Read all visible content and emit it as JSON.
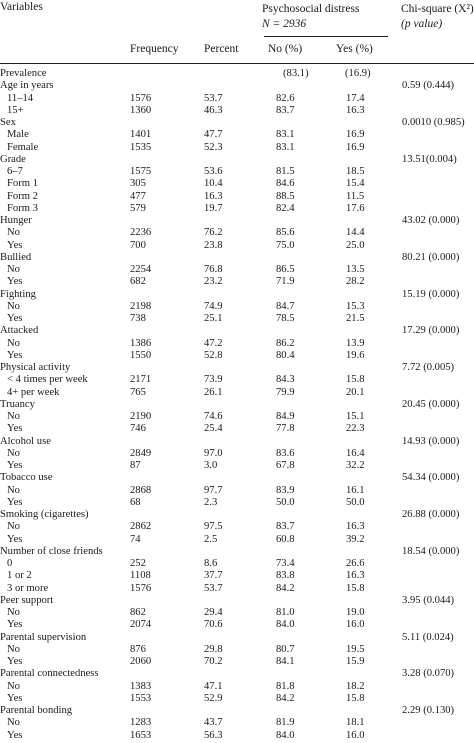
{
  "header": {
    "variables": "Variables",
    "psych_title": "Psychosocial distress",
    "psych_n": "N = 2936",
    "chi_line1": "Chi-square (X²)",
    "chi_line2": "(p value)",
    "frequency": "Frequency",
    "percent": "Percent",
    "no_pct": "No (%)",
    "yes_pct": "Yes (%)"
  },
  "rows": [
    {
      "label": "Prevalence",
      "no": "(83.1)",
      "yes": "(16.9)",
      "prev": true
    },
    {
      "label": "Age in years",
      "chi": "0.59 (0.444)"
    },
    {
      "label": "11–14",
      "freq": "1576",
      "pct": "53.7",
      "no": "82.6",
      "yes": "17.4",
      "ind": true
    },
    {
      "label": "15+",
      "freq": "1360",
      "pct": "46.3",
      "no": "83.7",
      "yes": "16.3",
      "ind": true
    },
    {
      "label": "Sex",
      "chi": "0.0010 (0.985)"
    },
    {
      "label": "Male",
      "freq": "1401",
      "pct": "47.7",
      "no": "83.1",
      "yes": "16.9",
      "ind": true
    },
    {
      "label": "Female",
      "freq": "1535",
      "pct": "52.3",
      "no": "83.1",
      "yes": "16.9",
      "ind": true
    },
    {
      "label": "Grade",
      "chi": "13.51(0.004)"
    },
    {
      "label": "6–7",
      "freq": "1575",
      "pct": "53.6",
      "no": "81.5",
      "yes": "18.5",
      "ind": true
    },
    {
      "label": "Form 1",
      "freq": "305",
      "pct": "10.4",
      "no": "84.6",
      "yes": "15.4",
      "ind": true
    },
    {
      "label": "Form 2",
      "freq": "477",
      "pct": "16.3",
      "no": "88.5",
      "yes": "11.5",
      "ind": true
    },
    {
      "label": "Form 3",
      "freq": "579",
      "pct": "19.7",
      "no": "82.4",
      "yes": "17.6",
      "ind": true
    },
    {
      "label": "Hunger",
      "chi": "43.02 (0.000)"
    },
    {
      "label": "No",
      "freq": "2236",
      "pct": "76.2",
      "no": "85.6",
      "yes": "14.4",
      "ind": true
    },
    {
      "label": "Yes",
      "freq": "700",
      "pct": "23.8",
      "no": "75.0",
      "yes": "25.0",
      "ind": true
    },
    {
      "label": "Bullied",
      "chi": "80.21 (0.000)"
    },
    {
      "label": "No",
      "freq": "2254",
      "pct": "76.8",
      "no": "86.5",
      "yes": "13.5",
      "ind": true
    },
    {
      "label": "Yes",
      "freq": "682",
      "pct": "23.2",
      "no": "71.9",
      "yes": "28.2",
      "ind": true
    },
    {
      "label": "Fighting",
      "chi": "15.19 (0.000)"
    },
    {
      "label": "No",
      "freq": "2198",
      "pct": "74.9",
      "no": "84.7",
      "yes": "15.3",
      "ind": true
    },
    {
      "label": "Yes",
      "freq": "738",
      "pct": "25.1",
      "no": "78.5",
      "yes": "21.5",
      "ind": true
    },
    {
      "label": "Attacked",
      "chi": "17.29 (0.000)"
    },
    {
      "label": "No",
      "freq": "1386",
      "pct": "47.2",
      "no": "86.2",
      "yes": "13.9",
      "ind": true
    },
    {
      "label": "Yes",
      "freq": "1550",
      "pct": "52.8",
      "no": "80.4",
      "yes": "19.6",
      "ind": true
    },
    {
      "label": "Physical activity",
      "chi": "7.72 (0.005)"
    },
    {
      "label": "< 4 times per week",
      "freq": "2171",
      "pct": "73.9",
      "no": "84.3",
      "yes": "15.8",
      "ind": true
    },
    {
      "label": "4+ per week",
      "freq": "765",
      "pct": "26.1",
      "no": "79.9",
      "yes": "20.1",
      "ind": true
    },
    {
      "label": "Truancy",
      "chi": "20.45 (0.000)"
    },
    {
      "label": "No",
      "freq": "2190",
      "pct": "74.6",
      "no": "84.9",
      "yes": "15.1",
      "ind": true
    },
    {
      "label": "Yes",
      "freq": "746",
      "pct": "25.4",
      "no": "77.8",
      "yes": "22.3",
      "ind": true
    },
    {
      "label": "Alcohol use",
      "chi": "14.93 (0.000)"
    },
    {
      "label": "No",
      "freq": "2849",
      "pct": "97.0",
      "no": "83.6",
      "yes": "16.4",
      "ind": true
    },
    {
      "label": "Yes",
      "freq": "87",
      "pct": "3.0",
      "no": "67.8",
      "yes": "32.2",
      "ind": true
    },
    {
      "label": "Tobacco use",
      "chi": "54.34 (0.000)"
    },
    {
      "label": "No",
      "freq": "2868",
      "pct": "97.7",
      "no": "83.9",
      "yes": "16.1",
      "ind": true
    },
    {
      "label": "Yes",
      "freq": "68",
      "pct": "2.3",
      "no": "50.0",
      "yes": "50.0",
      "ind": true
    },
    {
      "label": "Smoking (cigarettes)",
      "chi": "26.88 (0.000)"
    },
    {
      "label": "No",
      "freq": "2862",
      "pct": "97.5",
      "no": "83.7",
      "yes": "16.3",
      "ind": true
    },
    {
      "label": "Yes",
      "freq": "74",
      "pct": "2.5",
      "no": "60.8",
      "yes": "39.2",
      "ind": true
    },
    {
      "label": "Number of close friends",
      "chi": "18.54 (0.000)"
    },
    {
      "label": "0",
      "freq": "252",
      "pct": "8.6",
      "no": "73.4",
      "yes": "26.6",
      "ind": true
    },
    {
      "label": "1 or 2",
      "freq": "1108",
      "pct": "37.7",
      "no": "83.8",
      "yes": "16.3",
      "ind": true
    },
    {
      "label": "3 or more",
      "freq": "1576",
      "pct": "53.7",
      "no": "84.2",
      "yes": "15.8",
      "ind": true
    },
    {
      "label": "Peer support",
      "chi": "3.95 (0.044)"
    },
    {
      "label": "No",
      "freq": "862",
      "pct": "29.4",
      "no": "81.0",
      "yes": "19.0",
      "ind": true
    },
    {
      "label": "Yes",
      "freq": "2074",
      "pct": "70.6",
      "no": "84.0",
      "yes": "16.0",
      "ind": true
    },
    {
      "label": "Parental supervision",
      "chi": "5.11 (0.024)"
    },
    {
      "label": "No",
      "freq": "876",
      "pct": "29.8",
      "no": "80.7",
      "yes": "19.5",
      "ind": true
    },
    {
      "label": "Yes",
      "freq": "2060",
      "pct": "70.2",
      "no": "84.1",
      "yes": "15.9",
      "ind": true
    },
    {
      "label": "Parental connectedness",
      "chi": "3.28 (0.070)"
    },
    {
      "label": "No",
      "freq": "1383",
      "pct": "47.1",
      "no": "81.8",
      "yes": "18.2",
      "ind": true
    },
    {
      "label": "Yes",
      "freq": "1553",
      "pct": "52.9",
      "no": "84.2",
      "yes": "15.8",
      "ind": true
    },
    {
      "label": "Parental bonding",
      "chi": "2.29 (0.130)"
    },
    {
      "label": "No",
      "freq": "1283",
      "pct": "43.7",
      "no": "81.9",
      "yes": "18.1",
      "ind": true
    },
    {
      "label": "Yes",
      "freq": "1653",
      "pct": "56.3",
      "no": "84.0",
      "yes": "16.0",
      "ind": true
    }
  ]
}
